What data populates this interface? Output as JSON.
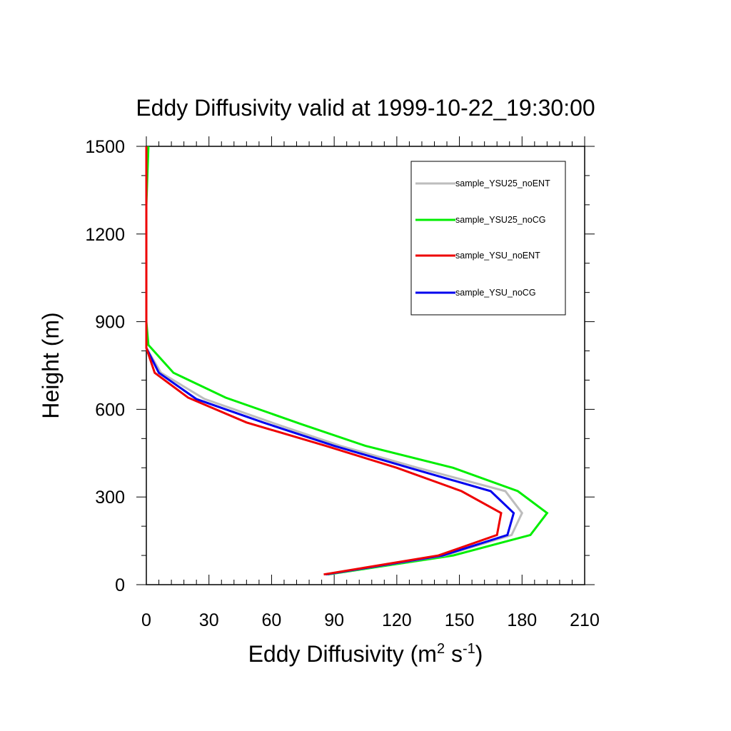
{
  "chart_data": {
    "type": "line",
    "title": "Eddy Diffusivity valid at 1999-10-22_19:30:00",
    "xlabel": {
      "base": "Eddy Diffusivity (m",
      "sup1": "2",
      "mid": " s",
      "sup2": "-1",
      "end": ")"
    },
    "ylabel": "Height (m)",
    "xlim": [
      0,
      210
    ],
    "ylim": [
      0,
      1500
    ],
    "x_ticks": [
      0,
      30,
      60,
      90,
      120,
      150,
      180,
      210
    ],
    "y_ticks": [
      0,
      300,
      600,
      900,
      1200,
      1500
    ],
    "x_tick_labels": [
      "0",
      "30",
      "60",
      "90",
      "120",
      "150",
      "180",
      "210"
    ],
    "y_tick_labels": [
      "0",
      "300",
      "600",
      "900",
      "1200",
      "1500"
    ],
    "grid": false,
    "legend_position": "top-right",
    "series": [
      {
        "name": "sample_YSU25_noENT",
        "color": "#bdbdbd",
        "points": [
          [
            86,
            35
          ],
          [
            143,
            100
          ],
          [
            175,
            170
          ],
          [
            180,
            245
          ],
          [
            172,
            320
          ],
          [
            130,
            400
          ],
          [
            93,
            475
          ],
          [
            62,
            550
          ],
          [
            28,
            635
          ],
          [
            7,
            725
          ],
          [
            0,
            810
          ],
          [
            0,
            900
          ],
          [
            0,
            1100
          ],
          [
            0,
            1300
          ],
          [
            0,
            1500
          ]
        ]
      },
      {
        "name": "sample_YSU25_noCG",
        "color": "#00ee00",
        "points": [
          [
            87,
            35
          ],
          [
            147,
            100
          ],
          [
            184,
            170
          ],
          [
            192,
            245
          ],
          [
            178,
            320
          ],
          [
            147,
            400
          ],
          [
            105,
            475
          ],
          [
            74,
            550
          ],
          [
            38,
            640
          ],
          [
            13,
            725
          ],
          [
            1,
            820
          ],
          [
            0,
            900
          ],
          [
            0,
            1100
          ],
          [
            0,
            1300
          ],
          [
            1,
            1500
          ]
        ]
      },
      {
        "name": "sample_YSU_noENT",
        "color": "#ee0000",
        "points": [
          [
            85,
            35
          ],
          [
            140,
            100
          ],
          [
            168,
            170
          ],
          [
            170,
            245
          ],
          [
            151,
            320
          ],
          [
            120,
            400
          ],
          [
            86,
            475
          ],
          [
            48,
            555
          ],
          [
            20,
            640
          ],
          [
            4,
            725
          ],
          [
            0,
            810
          ],
          [
            0,
            900
          ],
          [
            0,
            1100
          ],
          [
            0,
            1300
          ],
          [
            0,
            1500
          ]
        ]
      },
      {
        "name": "sample_YSU_noCG",
        "color": "#0000ee",
        "points": [
          [
            86,
            35
          ],
          [
            142,
            100
          ],
          [
            173,
            170
          ],
          [
            176,
            245
          ],
          [
            165,
            320
          ],
          [
            126,
            400
          ],
          [
            90,
            475
          ],
          [
            56,
            555
          ],
          [
            24,
            635
          ],
          [
            6,
            725
          ],
          [
            0,
            810
          ],
          [
            0,
            900
          ],
          [
            0,
            1100
          ],
          [
            0,
            1300
          ],
          [
            0,
            1500
          ]
        ]
      }
    ]
  }
}
